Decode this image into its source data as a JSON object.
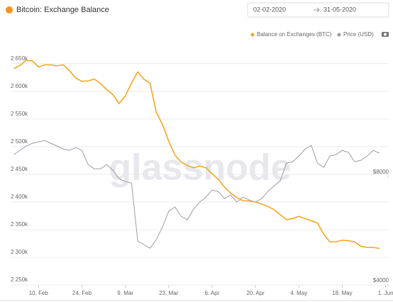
{
  "header": {
    "title": "Bitcoin: Exchange Balance",
    "date_from": "02-02-2020",
    "date_to": "31-05-2020"
  },
  "chart_data": {
    "type": "line",
    "watermark": "glassnode",
    "x": [
      "2020-02-02",
      "2020-02-04",
      "2020-02-06",
      "2020-02-08",
      "2020-02-10",
      "2020-02-12",
      "2020-02-14",
      "2020-02-16",
      "2020-02-18",
      "2020-02-20",
      "2020-02-22",
      "2020-02-24",
      "2020-02-26",
      "2020-02-28",
      "2020-03-01",
      "2020-03-03",
      "2020-03-05",
      "2020-03-07",
      "2020-03-09",
      "2020-03-11",
      "2020-03-13",
      "2020-03-15",
      "2020-03-17",
      "2020-03-19",
      "2020-03-21",
      "2020-03-23",
      "2020-03-25",
      "2020-03-27",
      "2020-03-29",
      "2020-03-31",
      "2020-04-02",
      "2020-04-04",
      "2020-04-06",
      "2020-04-08",
      "2020-04-10",
      "2020-04-12",
      "2020-04-14",
      "2020-04-16",
      "2020-04-18",
      "2020-04-20",
      "2020-04-22",
      "2020-04-24",
      "2020-04-26",
      "2020-04-28",
      "2020-04-30",
      "2020-05-02",
      "2020-05-04",
      "2020-05-06",
      "2020-05-08",
      "2020-05-10",
      "2020-05-12",
      "2020-05-14",
      "2020-05-16",
      "2020-05-18",
      "2020-05-20",
      "2020-05-22",
      "2020-05-24",
      "2020-05-26",
      "2020-05-28",
      "2020-05-30"
    ],
    "xlim": [
      "2020-02-01",
      "2020-06-02"
    ],
    "xticks": [
      {
        "value": "2020-02-10",
        "label": "10. Feb"
      },
      {
        "value": "2020-02-24",
        "label": "24. Feb"
      },
      {
        "value": "2020-03-09",
        "label": "9. Mar"
      },
      {
        "value": "2020-03-23",
        "label": "23. Mar"
      },
      {
        "value": "2020-04-06",
        "label": "6. Apr"
      },
      {
        "value": "2020-04-20",
        "label": "20. Apr"
      },
      {
        "value": "2020-05-04",
        "label": "4. May"
      },
      {
        "value": "2020-05-18",
        "label": "18. May"
      },
      {
        "value": "2020-06-01",
        "label": "1. Jun"
      }
    ],
    "ylim": [
      2250000,
      2660000
    ],
    "yticks": [
      {
        "value": 2250000,
        "label": "2 250k"
      },
      {
        "value": 2300000,
        "label": "2 300k"
      },
      {
        "value": 2350000,
        "label": "2 350k"
      },
      {
        "value": 2400000,
        "label": "2 400k"
      },
      {
        "value": 2450000,
        "label": "2 450k"
      },
      {
        "value": 2500000,
        "label": "2 500k"
      },
      {
        "value": 2550000,
        "label": "2 550k"
      },
      {
        "value": 2600000,
        "label": "2 600k"
      },
      {
        "value": 2650000,
        "label": "2 650k"
      }
    ],
    "y2lim": [
      4000,
      12370
    ],
    "y2ticks": [
      {
        "value": 4000,
        "label": "$4000"
      },
      {
        "value": 8000,
        "label": "$8000"
      }
    ],
    "grid": true,
    "series": [
      {
        "name": "Balance on Exchanges (BTC)",
        "color": "#f5a623",
        "values": [
          2641000,
          2647000,
          2656000,
          2655000,
          2644000,
          2648000,
          2648000,
          2646000,
          2648000,
          2637000,
          2624000,
          2618000,
          2619000,
          2622000,
          2614000,
          2603000,
          2594000,
          2578000,
          2592000,
          2615000,
          2635000,
          2622000,
          2614000,
          2562000,
          2540000,
          2510000,
          2485000,
          2472000,
          2466000,
          2462000,
          2465000,
          2462000,
          2451000,
          2441000,
          2427000,
          2416000,
          2408000,
          2402000,
          2402000,
          2400000,
          2396000,
          2392000,
          2386000,
          2377000,
          2368000,
          2370000,
          2374000,
          2370000,
          2366000,
          2362000,
          2342000,
          2328000,
          2328000,
          2331000,
          2330000,
          2328000,
          2320000,
          2318000,
          2318000,
          2316000
        ]
      },
      {
        "name": "Price (USD)",
        "color": "#a09aa8",
        "axis": "y2",
        "values": [
          8810,
          8967,
          9123,
          9228,
          9280,
          9333,
          9228,
          9123,
          9019,
          8967,
          9071,
          8967,
          8444,
          8287,
          8287,
          8444,
          8235,
          7921,
          7817,
          7764,
          5620,
          5490,
          5359,
          5673,
          6143,
          6719,
          6875,
          6536,
          6405,
          6797,
          7058,
          7241,
          7503,
          7450,
          7189,
          7320,
          7058,
          7241,
          7137,
          7058,
          7189,
          7450,
          7660,
          7843,
          8496,
          8548,
          8757,
          9019,
          9149,
          8496,
          8339,
          8757,
          8810,
          8967,
          8889,
          8548,
          8600,
          8757,
          8967,
          8862
        ]
      }
    ]
  }
}
